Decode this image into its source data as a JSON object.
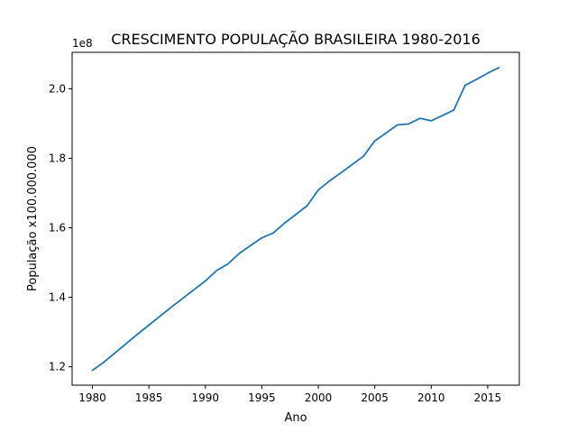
{
  "chart_data": {
    "type": "line",
    "title": "CRESCIMENTO POPULAÇÃO BRASILEIRA 1980-2016",
    "xlabel": "Ano",
    "ylabel": "População x100.000.000",
    "offset_text": "1e8",
    "xlim": [
      1978.2,
      2017.8
    ],
    "ylim": [
      114700000.0,
      210500000.0
    ],
    "x_ticks": [
      1980,
      1985,
      1990,
      1995,
      2000,
      2005,
      2010,
      2015
    ],
    "x_tick_labels": [
      "1980",
      "1985",
      "1990",
      "1995",
      "2000",
      "2005",
      "2010",
      "2015"
    ],
    "y_ticks": [
      120000000.0,
      140000000.0,
      160000000.0,
      180000000.0,
      200000000.0
    ],
    "y_tick_labels": [
      "1.2",
      "1.4",
      "1.6",
      "1.8",
      "2.0"
    ],
    "grid": false,
    "line_color": "#1f77b4",
    "series": [
      {
        "x": [
          1980,
          1981,
          1982,
          1983,
          1984,
          1985,
          1986,
          1987,
          1988,
          1989,
          1990,
          1991,
          1992,
          1993,
          1994,
          1995,
          1996,
          1997,
          1998,
          1999,
          2000,
          2001,
          2002,
          2003,
          2004,
          2005,
          2006,
          2007,
          2008,
          2009,
          2010,
          2011,
          2012,
          2013,
          2014,
          2015,
          2016
        ],
        "values": [
          119000000,
          121300000,
          124000000,
          126700000,
          129400000,
          132000000,
          134600000,
          137200000,
          139700000,
          142200000,
          144700000,
          147700000,
          149600000,
          152600000,
          154900000,
          157100000,
          158500000,
          161300000,
          163800000,
          166300000,
          170900000,
          173500000,
          175800000,
          178200000,
          180600000,
          185000000,
          187300000,
          189600000,
          189900000,
          191500000,
          190800000,
          192300000,
          193900000,
          201000000,
          202700000,
          204500000,
          206100000
        ]
      }
    ]
  }
}
